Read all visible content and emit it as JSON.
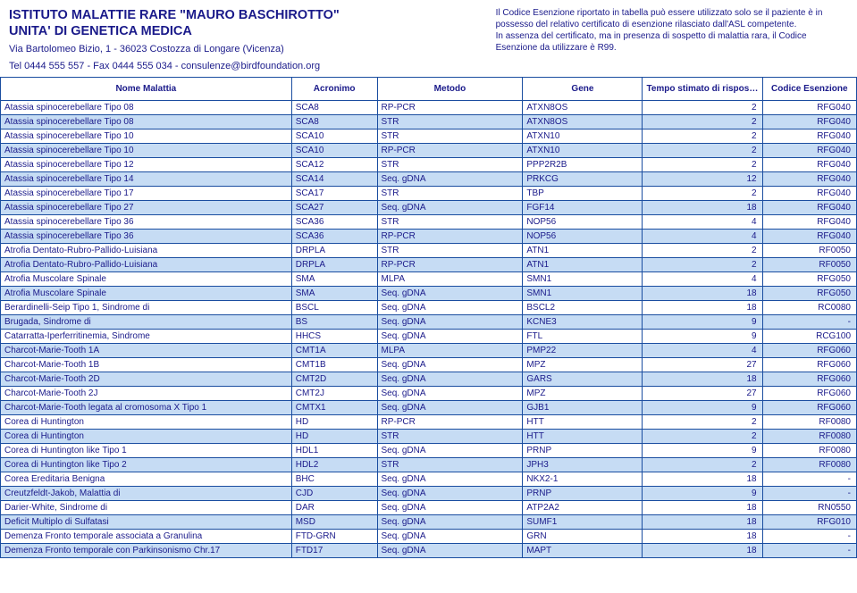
{
  "header": {
    "org_line1": "ISTITUTO MALATTIE RARE \"MAURO BASCHIROTTO\"",
    "org_line2": "UNITA' DI GENETICA MEDICA",
    "addr_line1": "Via Bartolomeo Bizio, 1 - 36023 Costozza di Longare (Vicenza)",
    "addr_line2": "Tel 0444 555 557 - Fax 0444 555 034 - consulenze@birdfoundation.org",
    "note_p1": "Il Codice Esenzione riportato in tabella può essere utilizzato solo se il paziente è in possesso del relativo certificato di esenzione rilasciato dall'ASL competente.",
    "note_p2": "In assenza del certificato, ma in presenza di sospetto di malattia rara, il Codice Esenzione da utilizzare è R99."
  },
  "columns": {
    "nome": "Nome Malattia",
    "acr": "Acronimo",
    "met": "Metodo",
    "gene": "Gene",
    "tmp": "Tempo stimato di risposta (Settimane)",
    "cod": "Codice Esenzione"
  },
  "rows": [
    {
      "alt": false,
      "nome": "Atassia spinocerebellare Tipo 08",
      "acr": "SCA8",
      "met": "RP-PCR",
      "gene": "ATXN8OS",
      "tmp": "2",
      "cod": "RFG040"
    },
    {
      "alt": true,
      "nome": "Atassia spinocerebellare Tipo 08",
      "acr": "SCA8",
      "met": "STR",
      "gene": "ATXN8OS",
      "tmp": "2",
      "cod": "RFG040"
    },
    {
      "alt": false,
      "nome": "Atassia spinocerebellare Tipo 10",
      "acr": "SCA10",
      "met": "STR",
      "gene": "ATXN10",
      "tmp": "2",
      "cod": "RFG040"
    },
    {
      "alt": true,
      "nome": "Atassia spinocerebellare Tipo 10",
      "acr": "SCA10",
      "met": "RP-PCR",
      "gene": "ATXN10",
      "tmp": "2",
      "cod": "RFG040"
    },
    {
      "alt": false,
      "nome": "Atassia spinocerebellare Tipo 12",
      "acr": "SCA12",
      "met": "STR",
      "gene": "PPP2R2B",
      "tmp": "2",
      "cod": "RFG040"
    },
    {
      "alt": true,
      "nome": "Atassia spinocerebellare Tipo 14",
      "acr": "SCA14",
      "met": "Seq. gDNA",
      "gene": "PRKCG",
      "tmp": "12",
      "cod": "RFG040"
    },
    {
      "alt": false,
      "nome": "Atassia spinocerebellare Tipo 17",
      "acr": "SCA17",
      "met": "STR",
      "gene": "TBP",
      "tmp": "2",
      "cod": "RFG040"
    },
    {
      "alt": true,
      "nome": "Atassia spinocerebellare Tipo 27",
      "acr": "SCA27",
      "met": "Seq. gDNA",
      "gene": "FGF14",
      "tmp": "18",
      "cod": "RFG040"
    },
    {
      "alt": false,
      "nome": "Atassia spinocerebellare Tipo 36",
      "acr": "SCA36",
      "met": "STR",
      "gene": "NOP56",
      "tmp": "4",
      "cod": "RFG040"
    },
    {
      "alt": true,
      "nome": "Atassia spinocerebellare Tipo 36",
      "acr": "SCA36",
      "met": "RP-PCR",
      "gene": "NOP56",
      "tmp": "4",
      "cod": "RFG040"
    },
    {
      "alt": false,
      "nome": "Atrofia Dentato-Rubro-Pallido-Luisiana",
      "acr": "DRPLA",
      "met": "STR",
      "gene": "ATN1",
      "tmp": "2",
      "cod": "RF0050"
    },
    {
      "alt": true,
      "nome": "Atrofia Dentato-Rubro-Pallido-Luisiana",
      "acr": "DRPLA",
      "met": "RP-PCR",
      "gene": "ATN1",
      "tmp": "2",
      "cod": "RF0050"
    },
    {
      "alt": false,
      "nome": "Atrofia Muscolare Spinale",
      "acr": "SMA",
      "met": "MLPA",
      "gene": "SMN1",
      "tmp": "4",
      "cod": "RFG050"
    },
    {
      "alt": true,
      "nome": "Atrofia Muscolare Spinale",
      "acr": "SMA",
      "met": "Seq. gDNA",
      "gene": "SMN1",
      "tmp": "18",
      "cod": "RFG050"
    },
    {
      "alt": false,
      "nome": "Berardinelli-Seip Tipo 1, Sindrome di",
      "acr": "BSCL",
      "met": "Seq. gDNA",
      "gene": "BSCL2",
      "tmp": "18",
      "cod": "RC0080"
    },
    {
      "alt": true,
      "nome": "Brugada, Sindrome di",
      "acr": "BS",
      "met": "Seq. gDNA",
      "gene": "KCNE3",
      "tmp": "9",
      "cod": "-"
    },
    {
      "alt": false,
      "nome": "Catarratta-Iperferritinemia, Sindrome",
      "acr": "HHCS",
      "met": "Seq. gDNA",
      "gene": "FTL",
      "tmp": "9",
      "cod": "RCG100"
    },
    {
      "alt": true,
      "nome": "Charcot-Marie-Tooth 1A",
      "acr": "CMT1A",
      "met": "MLPA",
      "gene": "PMP22",
      "tmp": "4",
      "cod": "RFG060"
    },
    {
      "alt": false,
      "nome": "Charcot-Marie-Tooth 1B",
      "acr": "CMT1B",
      "met": "Seq. gDNA",
      "gene": "MPZ",
      "tmp": "27",
      "cod": "RFG060"
    },
    {
      "alt": true,
      "nome": "Charcot-Marie-Tooth 2D",
      "acr": "CMT2D",
      "met": "Seq. gDNA",
      "gene": "GARS",
      "tmp": "18",
      "cod": "RFG060"
    },
    {
      "alt": false,
      "nome": "Charcot-Marie-Tooth 2J",
      "acr": "CMT2J",
      "met": "Seq. gDNA",
      "gene": "MPZ",
      "tmp": "27",
      "cod": "RFG060"
    },
    {
      "alt": true,
      "nome": "Charcot-Marie-Tooth legata al cromosoma X Tipo 1",
      "acr": "CMTX1",
      "met": "Seq. gDNA",
      "gene": "GJB1",
      "tmp": "9",
      "cod": "RFG060"
    },
    {
      "alt": false,
      "nome": "Corea di Huntington",
      "acr": "HD",
      "met": "RP-PCR",
      "gene": "HTT",
      "tmp": "2",
      "cod": "RF0080"
    },
    {
      "alt": true,
      "nome": "Corea di Huntington",
      "acr": "HD",
      "met": "STR",
      "gene": "HTT",
      "tmp": "2",
      "cod": "RF0080"
    },
    {
      "alt": false,
      "nome": "Corea di Huntington like Tipo 1",
      "acr": "HDL1",
      "met": "Seq. gDNA",
      "gene": "PRNP",
      "tmp": "9",
      "cod": "RF0080"
    },
    {
      "alt": true,
      "nome": "Corea di Huntington like Tipo 2",
      "acr": "HDL2",
      "met": "STR",
      "gene": "JPH3",
      "tmp": "2",
      "cod": "RF0080"
    },
    {
      "alt": false,
      "nome": "Corea Ereditaria Benigna",
      "acr": "BHC",
      "met": "Seq. gDNA",
      "gene": "NKX2-1",
      "tmp": "18",
      "cod": "-"
    },
    {
      "alt": true,
      "nome": "Creutzfeldt-Jakob, Malattia di",
      "acr": "CJD",
      "met": "Seq. gDNA",
      "gene": "PRNP",
      "tmp": "9",
      "cod": "-"
    },
    {
      "alt": false,
      "nome": "Darier-White, Sindrome di",
      "acr": "DAR",
      "met": "Seq. gDNA",
      "gene": "ATP2A2",
      "tmp": "18",
      "cod": "RN0550"
    },
    {
      "alt": true,
      "nome": "Deficit Multiplo di Sulfatasi",
      "acr": "MSD",
      "met": "Seq. gDNA",
      "gene": "SUMF1",
      "tmp": "18",
      "cod": "RFG010"
    },
    {
      "alt": false,
      "nome": "Demenza Fronto temporale associata a Granulina",
      "acr": "FTD-GRN",
      "met": "Seq. gDNA",
      "gene": "GRN",
      "tmp": "18",
      "cod": "-"
    },
    {
      "alt": true,
      "nome": "Demenza Fronto temporale con Parkinsonismo Chr.17",
      "acr": "FTD17",
      "met": "Seq. gDNA",
      "gene": "MAPT",
      "tmp": "18",
      "cod": "-"
    }
  ],
  "style": {
    "text_color": "#1a1a8a",
    "border_color": "#1a4da0",
    "alt_row_bg": "#c6dcf4",
    "bg": "#ffffff"
  }
}
